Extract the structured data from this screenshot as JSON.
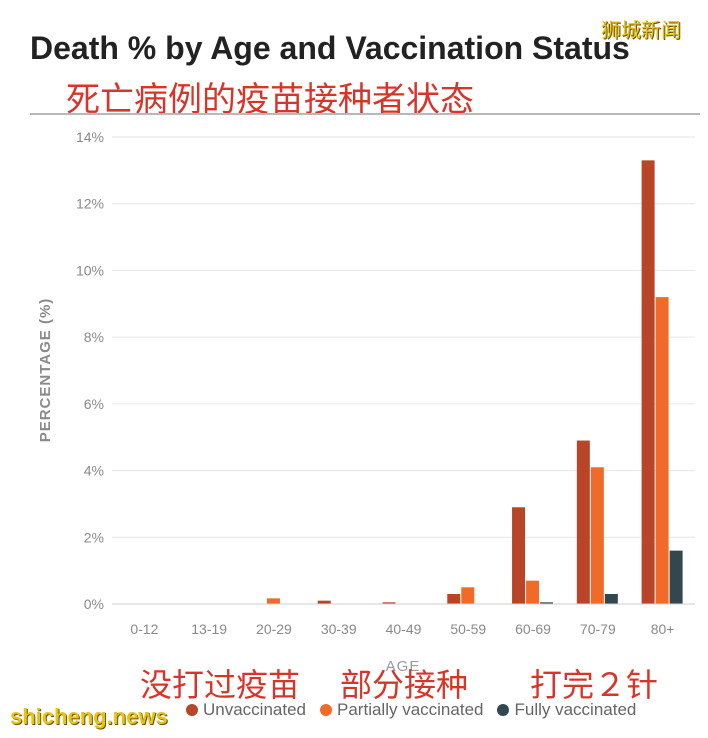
{
  "title": "Death % by Age and Vaccination Status",
  "title_zh": "死亡病例的疫苗接种者状态",
  "watermark_top": "狮城新闻",
  "watermark_bottom": "shicheng.news",
  "annotations": {
    "unvaccinated": "没打过疫苗",
    "partial": "部分接种",
    "full": "打完２针"
  },
  "chart_data": {
    "type": "bar",
    "xlabel": "AGE",
    "ylabel": "PERCENTAGE (%)",
    "ylim": [
      0,
      14
    ],
    "yticks": [
      0,
      2,
      4,
      6,
      8,
      10,
      12,
      14
    ],
    "ytick_labels": [
      "0%",
      "2%",
      "4%",
      "6%",
      "8%",
      "10%",
      "12%",
      "14%"
    ],
    "grid": true,
    "legend_position": "bottom",
    "categories": [
      "0-12",
      "13-19",
      "20-29",
      "30-39",
      "40-49",
      "50-59",
      "60-69",
      "70-79",
      "80+"
    ],
    "series": [
      {
        "name": "Unvaccinated",
        "color": "#b84527",
        "values": [
          0,
          0,
          0,
          0.1,
          0.05,
          0.3,
          2.9,
          4.9,
          13.3
        ]
      },
      {
        "name": "Partially vaccinated",
        "color": "#f06b2a",
        "values": [
          0,
          0,
          0.17,
          0,
          0,
          0.5,
          0.7,
          4.1,
          9.2
        ]
      },
      {
        "name": "Fully vaccinated",
        "color": "#33484e",
        "values": [
          0,
          0,
          0,
          0,
          0,
          0,
          0.05,
          0.3,
          1.6
        ]
      }
    ]
  }
}
